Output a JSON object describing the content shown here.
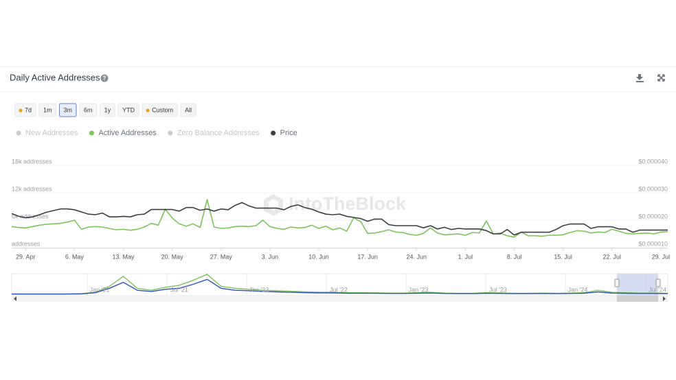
{
  "header": {
    "title": "Daily Active Addresses"
  },
  "range_buttons": [
    {
      "label": "7d",
      "locked": true
    },
    {
      "label": "1m",
      "locked": false
    },
    {
      "label": "3m",
      "locked": false,
      "active": true
    },
    {
      "label": "6m",
      "locked": false
    },
    {
      "label": "1y",
      "locked": false
    },
    {
      "label": "YTD",
      "locked": false
    },
    {
      "label": "Custom",
      "locked": true
    },
    {
      "label": "All",
      "locked": false
    }
  ],
  "watermark": "IntoTheBlock",
  "chart_data": {
    "type": "line",
    "categories": [
      null,
      null,
      "29. Apr",
      null,
      null,
      null,
      null,
      null,
      null,
      "6. May",
      null,
      null,
      null,
      null,
      null,
      null,
      "13. May",
      null,
      null,
      null,
      null,
      null,
      null,
      "20. May",
      null,
      null,
      null,
      null,
      null,
      null,
      "27. May",
      null,
      null,
      null,
      null,
      null,
      null,
      "3. Jun",
      null,
      null,
      null,
      null,
      null,
      null,
      "10. Jun",
      null,
      null,
      null,
      null,
      null,
      null,
      "17. Jun",
      null,
      null,
      null,
      null,
      null,
      null,
      "24. Jun",
      null,
      null,
      null,
      null,
      null,
      null,
      "1. Jul",
      null,
      null,
      null,
      null,
      null,
      null,
      "8. Jul",
      null,
      null,
      null,
      null,
      null,
      null,
      "15. Jul",
      null,
      null,
      null,
      null,
      null,
      null,
      "22. Jul",
      null,
      null,
      null,
      null,
      null,
      null,
      "29. Jul",
      null
    ],
    "series": [
      {
        "name": "New Addresses",
        "color": "#cccccc",
        "hidden": true
      },
      {
        "name": "Active Addresses",
        "color": "#7cc35a",
        "values": [
          4600,
          4400,
          4300,
          4600,
          4900,
          5100,
          5200,
          5300,
          5600,
          6000,
          4000,
          4500,
          4600,
          4500,
          4200,
          3900,
          4000,
          3800,
          4000,
          4500,
          5300,
          4900,
          8400,
          6500,
          5200,
          4700,
          5200,
          4400,
          10500,
          4500,
          4200,
          4300,
          4600,
          4700,
          4600,
          4800,
          6000,
          4600,
          4200,
          4000,
          4500,
          4300,
          4400,
          4900,
          4200,
          4700,
          3900,
          4300,
          3600,
          6500,
          5700,
          3100,
          3200,
          3500,
          3900,
          3400,
          3300,
          2900,
          2700,
          3100,
          4300,
          3200,
          2800,
          2900,
          3000,
          2700,
          3300,
          3200,
          5800,
          3000,
          3200,
          2600,
          2300,
          3400,
          2600,
          2600,
          2500,
          2700,
          2700,
          2800,
          3300,
          3700,
          3600,
          3200,
          3400,
          3300,
          4000,
          3600,
          3100,
          3000,
          3100,
          3200,
          3000,
          3400,
          3500
        ]
      },
      {
        "name": "Zero Balance Addresses",
        "color": "#cccccc",
        "hidden": true
      },
      {
        "name": "Price",
        "color": "#3a3d40",
        "axis": "y2",
        "values": [
          2.24e-05,
          2.14e-05,
          2.09e-05,
          2.12e-05,
          2.2e-05,
          2.29e-05,
          2.35e-05,
          2.41e-05,
          2.41e-05,
          2.38e-05,
          2.3e-05,
          2.22e-05,
          2.2e-05,
          2.26e-05,
          2.12e-05,
          2.12e-05,
          2.14e-05,
          2.12e-05,
          2.2e-05,
          2.22e-05,
          2.39e-05,
          2.39e-05,
          2.39e-05,
          2.39e-05,
          2.33e-05,
          2.46e-05,
          2.46e-05,
          2.36e-05,
          2.41e-05,
          2.33e-05,
          2.41e-05,
          2.38e-05,
          2.54e-05,
          2.64e-05,
          2.52e-05,
          2.44e-05,
          2.44e-05,
          2.44e-05,
          2.44e-05,
          2.38e-05,
          2.5e-05,
          2.56e-05,
          2.46e-05,
          2.4e-05,
          2.3e-05,
          2.22e-05,
          2.2e-05,
          2.22e-05,
          2.14e-05,
          2.1e-05,
          2.06e-05,
          1.96e-05,
          2.04e-05,
          2.04e-05,
          1.84e-05,
          1.8e-05,
          1.8e-05,
          1.8e-05,
          1.8e-05,
          1.72e-05,
          1.8e-05,
          1.68e-05,
          1.74e-05,
          1.66e-05,
          1.7e-05,
          1.68e-05,
          1.68e-05,
          1.68e-05,
          1.62e-05,
          1.5e-05,
          1.5e-05,
          1.66e-05,
          1.46e-05,
          1.56e-05,
          1.56e-05,
          1.56e-05,
          1.56e-05,
          1.56e-05,
          1.66e-05,
          1.8e-05,
          1.86e-05,
          1.86e-05,
          1.86e-05,
          1.7e-05,
          1.76e-05,
          1.76e-05,
          1.76e-05,
          1.68e-05,
          1.68e-05,
          1.56e-05,
          1.64e-05,
          1.64e-05,
          1.64e-05,
          1.64e-05,
          1.64e-05
        ]
      }
    ],
    "ylim": [
      0,
      18000
    ],
    "yticks": [
      {
        "value": 0,
        "label": "addresses"
      },
      {
        "value": 6000,
        "label": "6k addresses"
      },
      {
        "value": 12000,
        "label": "12k addresses"
      },
      {
        "value": 18000,
        "label": "18k addresses"
      }
    ],
    "y2lim": [
      1e-05,
      4e-05
    ],
    "y2ticks": [
      {
        "value": 1e-05,
        "label": "$0.000010"
      },
      {
        "value": 2e-05,
        "label": "$0.000020"
      },
      {
        "value": 3e-05,
        "label": "$0.000030"
      },
      {
        "value": 4e-05,
        "label": "$0.000040"
      }
    ],
    "grid": true
  },
  "navigator": {
    "labels": [
      "Jan '21",
      "Jul '21",
      "Jan '22",
      "Jul '22",
      "Jan '23",
      "Jul '23",
      "Jan '24",
      "Jul '24"
    ],
    "ylim": [
      0,
      100
    ],
    "series": [
      {
        "color": "#7cc35a",
        "values": [
          2,
          2,
          2,
          2,
          2,
          3,
          10,
          40,
          90,
          30,
          20,
          35,
          45,
          70,
          100,
          40,
          30,
          25,
          20,
          18,
          15,
          12,
          10,
          10,
          8,
          8,
          7,
          6,
          6,
          8,
          10,
          6,
          5,
          5,
          8,
          7,
          5,
          5,
          6,
          5,
          6,
          8,
          20,
          10,
          8,
          6,
          6,
          5
        ]
      },
      {
        "color": "#2c4fc9",
        "values": [
          1,
          1,
          1,
          1,
          1,
          2,
          8,
          30,
          60,
          20,
          14,
          25,
          30,
          50,
          75,
          30,
          20,
          18,
          14,
          12,
          10,
          8,
          7,
          7,
          5,
          5,
          5,
          4,
          4,
          5,
          6,
          4,
          3,
          3,
          5,
          4,
          3,
          3,
          4,
          3,
          4,
          5,
          12,
          6,
          5,
          4,
          4,
          3
        ]
      }
    ]
  }
}
